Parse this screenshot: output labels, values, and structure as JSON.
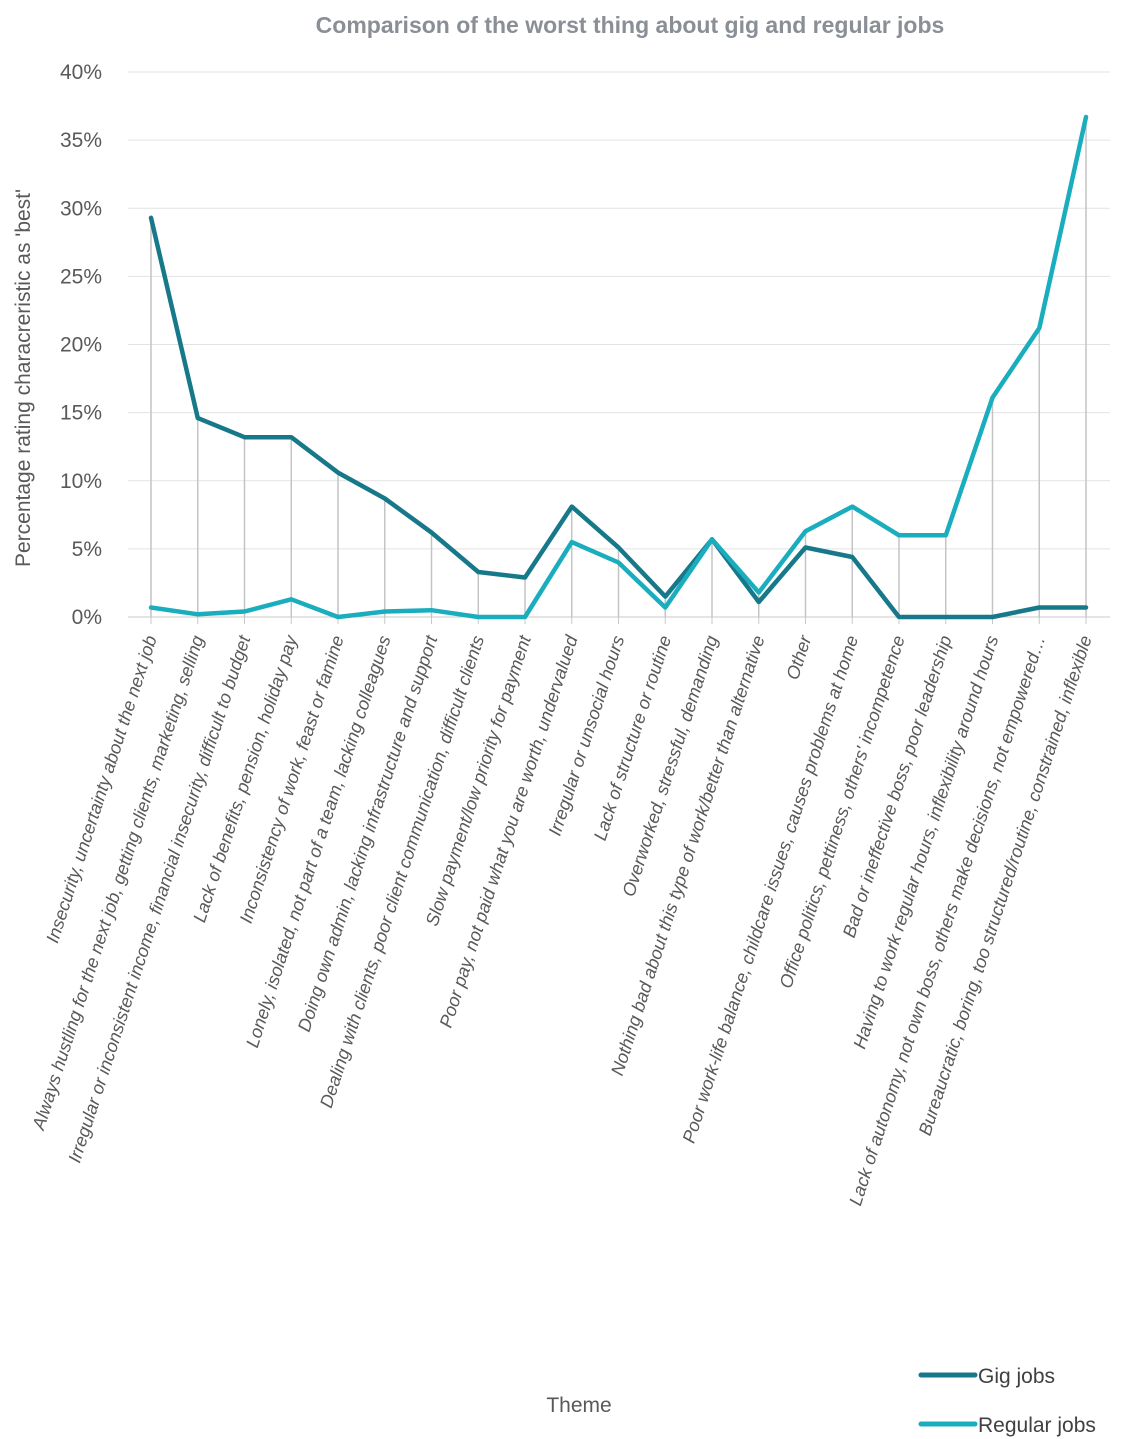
{
  "chart_data": {
    "type": "line",
    "title": "Comparison of the worst thing about gig and regular jobs",
    "xlabel": "Theme",
    "ylabel": "Percentage rating characreristic as 'best'",
    "ylim": [
      0,
      40
    ],
    "yticks": [
      "0%",
      "5%",
      "10%",
      "15%",
      "20%",
      "25%",
      "30%",
      "35%",
      "40%"
    ],
    "grid": true,
    "drop_lines": true,
    "legend_position": "bottom-right",
    "categories": [
      "Insecurity, uncertainty about the next job",
      "Always hustling for the next job, getting clients, marketing, selling",
      "Irregular or inconsistent income, financial insecurity, difficult to budget",
      "Lack of benefits, pension, holiday pay",
      "Inconsistency of work, feast or famine",
      "Lonely, isolated, not part of a team, lacking colleagues",
      "Doing own admin, lacking infrastructure and support",
      "Dealing with clients, poor client communication, difficult clients",
      "Slow payment/low priority for payment",
      "Poor pay, not paid what you are worth, undervalued",
      "Irregular or unsocial hours",
      "Lack of structure or routine",
      "Overworked, stressful, demanding",
      "Nothing bad about this type of work/better than alternative",
      "Other",
      "Poor work-life balance, childcare issues, causes problems at home",
      "Office politics, pettiness, others' incompetence",
      "Bad or ineffective boss, poor leadership",
      "Having to work regular hours, inflexibility around hours",
      "Lack of autonomy, not own boss, others make decisions, not empowered…",
      "Bureaucratic, boring, too structured/routine, constrained, inflexible"
    ],
    "series": [
      {
        "name": "Gig jobs",
        "color": "#17788a",
        "values": [
          29.3,
          14.6,
          13.2,
          13.2,
          10.6,
          8.7,
          6.2,
          3.3,
          2.9,
          8.1,
          5.1,
          1.5,
          5.7,
          1.1,
          5.1,
          4.4,
          0.0,
          0.0,
          0.0,
          0.7,
          0.7
        ]
      },
      {
        "name": "Regular jobs",
        "color": "#1aadbe",
        "values": [
          0.7,
          0.2,
          0.4,
          1.3,
          0.0,
          0.4,
          0.5,
          0.0,
          0.0,
          5.5,
          4.0,
          0.7,
          5.7,
          1.8,
          6.3,
          8.1,
          6.0,
          6.0,
          16.1,
          21.2,
          36.7
        ]
      }
    ]
  }
}
